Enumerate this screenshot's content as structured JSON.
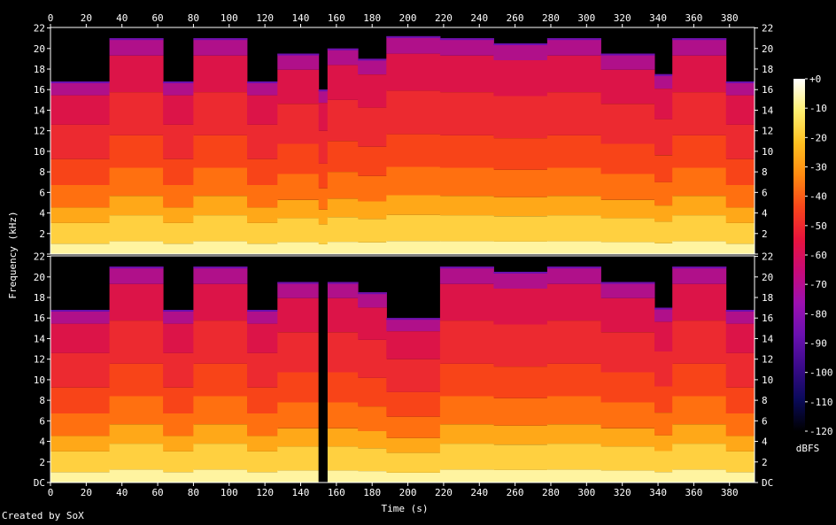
{
  "chart_data": {
    "type": "heatmap",
    "xlabel": "Time (s)",
    "ylabel": "Frequency (kHz)",
    "xlim": [
      0,
      394
    ],
    "ylim": [
      0,
      22.05
    ],
    "x_ticks": [
      0,
      20,
      40,
      60,
      80,
      100,
      120,
      140,
      160,
      180,
      200,
      220,
      240,
      260,
      280,
      300,
      320,
      340,
      360,
      380
    ],
    "y_ticks": [
      {
        "value": 0,
        "label": "DC"
      },
      {
        "value": 2,
        "label": "2"
      },
      {
        "value": 4,
        "label": "4"
      },
      {
        "value": 6,
        "label": "6"
      },
      {
        "value": 8,
        "label": "8"
      },
      {
        "value": 10,
        "label": "10"
      },
      {
        "value": 12,
        "label": "12"
      },
      {
        "value": 14,
        "label": "14"
      },
      {
        "value": 16,
        "label": "16"
      },
      {
        "value": 18,
        "label": "18"
      },
      {
        "value": 20,
        "label": "20"
      },
      {
        "value": 22,
        "label": "22"
      }
    ],
    "colorbar": {
      "unit": "dBFS",
      "range": [
        -120,
        0
      ],
      "ticks": [
        {
          "value": 0,
          "label": "+0"
        },
        {
          "value": -10,
          "label": "-10"
        },
        {
          "value": -20,
          "label": "-20"
        },
        {
          "value": -30,
          "label": "-30"
        },
        {
          "value": -40,
          "label": "-40"
        },
        {
          "value": -50,
          "label": "-50"
        },
        {
          "value": -60,
          "label": "-60"
        },
        {
          "value": -70,
          "label": "-70"
        },
        {
          "value": -80,
          "label": "-80"
        },
        {
          "value": -90,
          "label": "-90"
        },
        {
          "value": -100,
          "label": "-100"
        },
        {
          "value": -110,
          "label": "-110"
        },
        {
          "value": -120,
          "label": "-120"
        }
      ],
      "colors": [
        "#000000",
        "#0a0a5a",
        "#3a0a8a",
        "#6a10b0",
        "#9c10b0",
        "#c80a78",
        "#e8143c",
        "#f8461a",
        "#ff8a10",
        "#ffc020",
        "#fff070",
        "#ffffff"
      ]
    },
    "channels": [
      {
        "cutoff_segments": [
          {
            "t": [
              0,
              33
            ],
            "khz": 16.8
          },
          {
            "t": [
              33,
              63
            ],
            "khz": 21
          },
          {
            "t": [
              63,
              80
            ],
            "khz": 16.8
          },
          {
            "t": [
              80,
              110
            ],
            "khz": 21
          },
          {
            "t": [
              110,
              127
            ],
            "khz": 16.8
          },
          {
            "t": [
              127,
              150
            ],
            "khz": 19.5
          },
          {
            "t": [
              150,
              155
            ],
            "khz": 16.0
          },
          {
            "t": [
              155,
              172
            ],
            "khz": 20.0
          },
          {
            "t": [
              172,
              188
            ],
            "khz": 19.0
          },
          {
            "t": [
              188,
              218
            ],
            "khz": 21.2
          },
          {
            "t": [
              218,
              248
            ],
            "khz": 21
          },
          {
            "t": [
              248,
              278
            ],
            "khz": 20.5
          },
          {
            "t": [
              278,
              308
            ],
            "khz": 21
          },
          {
            "t": [
              308,
              338
            ],
            "khz": 19.5
          },
          {
            "t": [
              338,
              348
            ],
            "khz": 17.5
          },
          {
            "t": [
              348,
              378
            ],
            "khz": 21
          },
          {
            "t": [
              378,
              394
            ],
            "khz": 16.8
          }
        ],
        "dropouts": []
      },
      {
        "cutoff_segments": [
          {
            "t": [
              0,
              33
            ],
            "khz": 16.8
          },
          {
            "t": [
              33,
              63
            ],
            "khz": 21
          },
          {
            "t": [
              63,
              80
            ],
            "khz": 16.8
          },
          {
            "t": [
              80,
              110
            ],
            "khz": 21
          },
          {
            "t": [
              110,
              127
            ],
            "khz": 16.8
          },
          {
            "t": [
              127,
              150
            ],
            "khz": 19.5
          },
          {
            "t": [
              155,
              172
            ],
            "khz": 19.5
          },
          {
            "t": [
              172,
              188
            ],
            "khz": 18.5
          },
          {
            "t": [
              188,
              218
            ],
            "khz": 16.0
          },
          {
            "t": [
              218,
              248
            ],
            "khz": 21
          },
          {
            "t": [
              248,
              278
            ],
            "khz": 20.5
          },
          {
            "t": [
              278,
              308
            ],
            "khz": 21
          },
          {
            "t": [
              308,
              338
            ],
            "khz": 19.5
          },
          {
            "t": [
              338,
              348
            ],
            "khz": 17.0
          },
          {
            "t": [
              348,
              378
            ],
            "khz": 21
          },
          {
            "t": [
              378,
              394
            ],
            "khz": 16.8
          }
        ],
        "dropouts": [
          {
            "t": [
              150,
              155
            ]
          }
        ]
      }
    ]
  },
  "footer": {
    "credit": "Created by SoX"
  }
}
